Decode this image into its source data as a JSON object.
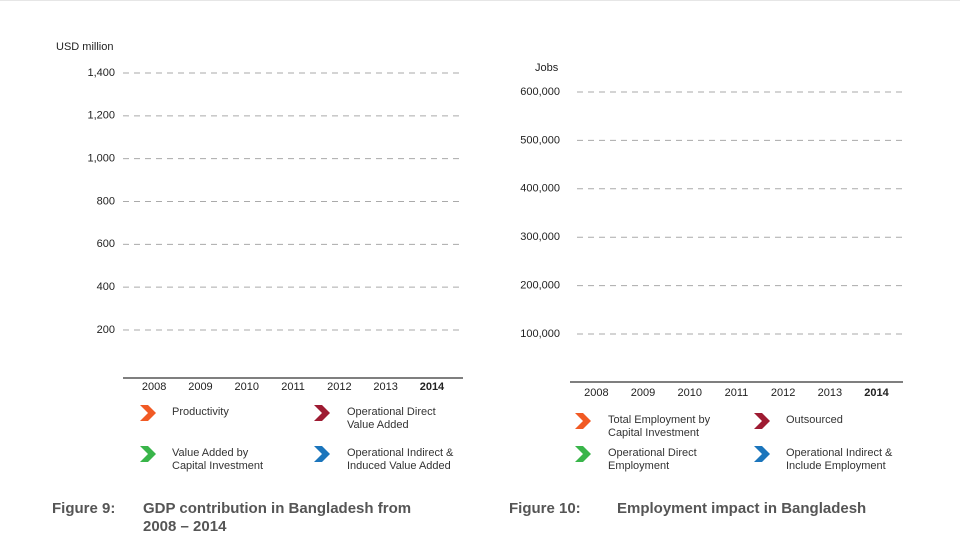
{
  "chart_data": [
    {
      "type": "bar",
      "figure_label": "Figure 9:",
      "title": "GDP contribution in Bangladesh from\n2008 – 2014",
      "y_label": "USD million",
      "categories": [
        "2008",
        "2009",
        "2010",
        "2011",
        "2012",
        "2013",
        "2014"
      ],
      "series": [
        {
          "name": "Productivity",
          "color": "#f15a24",
          "values": [
            null,
            null,
            null,
            null,
            null,
            null,
            null
          ]
        },
        {
          "name": "Operational Direct\nValue Added",
          "color": "#9e1b32",
          "values": [
            null,
            null,
            null,
            null,
            null,
            null,
            null
          ]
        },
        {
          "name": "Value Added by\n Capital Investment",
          "color": "#39b54a",
          "values": [
            null,
            null,
            null,
            null,
            null,
            null,
            null
          ]
        },
        {
          "name": "Operational Indirect &\nInduced Value Added",
          "color": "#1b75bc",
          "values": [
            null,
            null,
            null,
            null,
            null,
            null,
            null
          ]
        }
      ],
      "ylim": [
        0,
        1400
      ],
      "yticks": [
        200,
        400,
        600,
        800,
        {
          "value": 1000,
          "label": "1,000"
        },
        {
          "value": 1200,
          "label": "1,200"
        },
        {
          "value": 1400,
          "label": "1,400"
        }
      ],
      "grid": true
    },
    {
      "type": "bar",
      "figure_label": "Figure 10:",
      "title": "Employment impact in Bangladesh",
      "y_label": "Jobs",
      "categories": [
        "2008",
        "2009",
        "2010",
        "2011",
        "2012",
        "2013",
        "2014"
      ],
      "series": [
        {
          "name": "Total Employment by\nCapital Investment",
          "color": "#f15a24",
          "values": [
            null,
            null,
            null,
            null,
            null,
            null,
            null
          ]
        },
        {
          "name": "Outsourced",
          "color": "#9e1b32",
          "values": [
            null,
            null,
            null,
            null,
            null,
            null,
            null
          ]
        },
        {
          "name": "Operational Direct\nEmployment",
          "color": "#39b54a",
          "values": [
            null,
            null,
            null,
            null,
            null,
            null,
            null
          ]
        },
        {
          "name": "Operational Indirect &\nInclude Employment",
          "color": "#1b75bc",
          "values": [
            null,
            null,
            null,
            null,
            null,
            null,
            null
          ]
        }
      ],
      "ylim": [
        0,
        600000
      ],
      "yticks": [
        {
          "value": 100000,
          "label": "100,000"
        },
        {
          "value": 200000,
          "label": "200,000"
        },
        {
          "value": 300000,
          "label": "300,000"
        },
        {
          "value": 400000,
          "label": "400,000"
        },
        {
          "value": 500000,
          "label": "500,000"
        },
        {
          "value": 600000,
          "label": "600,000"
        }
      ],
      "grid": true
    }
  ]
}
